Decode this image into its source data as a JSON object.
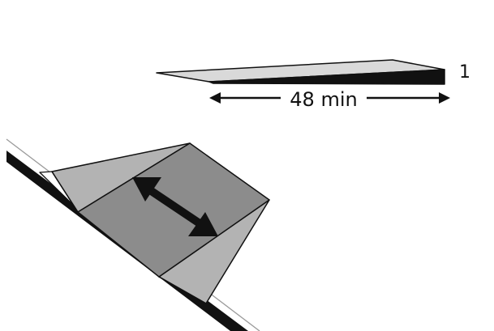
{
  "ramp": {
    "length_label": "48 min",
    "height_label": "1"
  },
  "colors": {
    "outline": "#111111",
    "ramp_face": "#d9d9d9",
    "ramp_side": "#111111",
    "cube_face": "#8c8c8c",
    "cube_side": "#b3b3b3",
    "slope_line": "#111111",
    "slope_ghost": "#9a9a9a",
    "arrow": "#111111"
  },
  "icons": {
    "motion_arrow": "double-headed-arrow-icon"
  }
}
